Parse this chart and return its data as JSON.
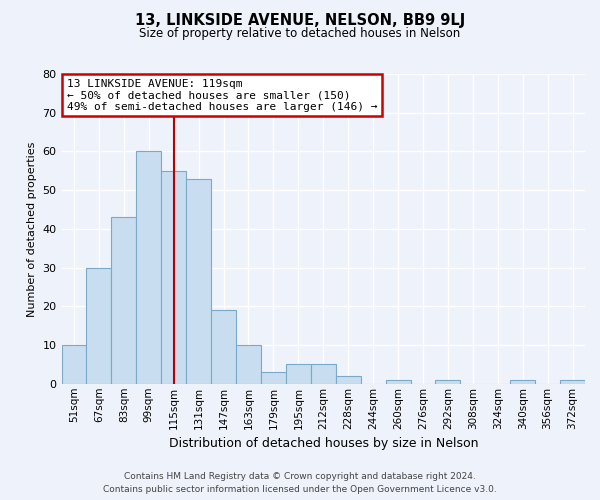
{
  "title": "13, LINKSIDE AVENUE, NELSON, BB9 9LJ",
  "subtitle": "Size of property relative to detached houses in Nelson",
  "xlabel": "Distribution of detached houses by size in Nelson",
  "ylabel": "Number of detached properties",
  "bar_labels": [
    "51sqm",
    "67sqm",
    "83sqm",
    "99sqm",
    "115sqm",
    "131sqm",
    "147sqm",
    "163sqm",
    "179sqm",
    "195sqm",
    "212sqm",
    "228sqm",
    "244sqm",
    "260sqm",
    "276sqm",
    "292sqm",
    "308sqm",
    "324sqm",
    "340sqm",
    "356sqm",
    "372sqm"
  ],
  "bar_heights": [
    10,
    30,
    43,
    60,
    55,
    53,
    19,
    10,
    3,
    5,
    5,
    2,
    0,
    1,
    0,
    1,
    0,
    0,
    1,
    0,
    1
  ],
  "bar_color": "#c8ddf0",
  "bar_edge_color": "#7aaac8",
  "vline_x_index": 4,
  "vline_color": "#bb0000",
  "annotation_title": "13 LINKSIDE AVENUE: 119sqm",
  "annotation_line1": "← 50% of detached houses are smaller (150)",
  "annotation_line2": "49% of semi-detached houses are larger (146) →",
  "annotation_box_color": "#ffffff",
  "annotation_box_edge": "#cc0000",
  "ylim": [
    0,
    80
  ],
  "yticks": [
    0,
    10,
    20,
    30,
    40,
    50,
    60,
    70,
    80
  ],
  "footer_line1": "Contains HM Land Registry data © Crown copyright and database right 2024.",
  "footer_line2": "Contains public sector information licensed under the Open Government Licence v3.0.",
  "bg_color": "#eef2fa",
  "grid_color": "#ffffff"
}
